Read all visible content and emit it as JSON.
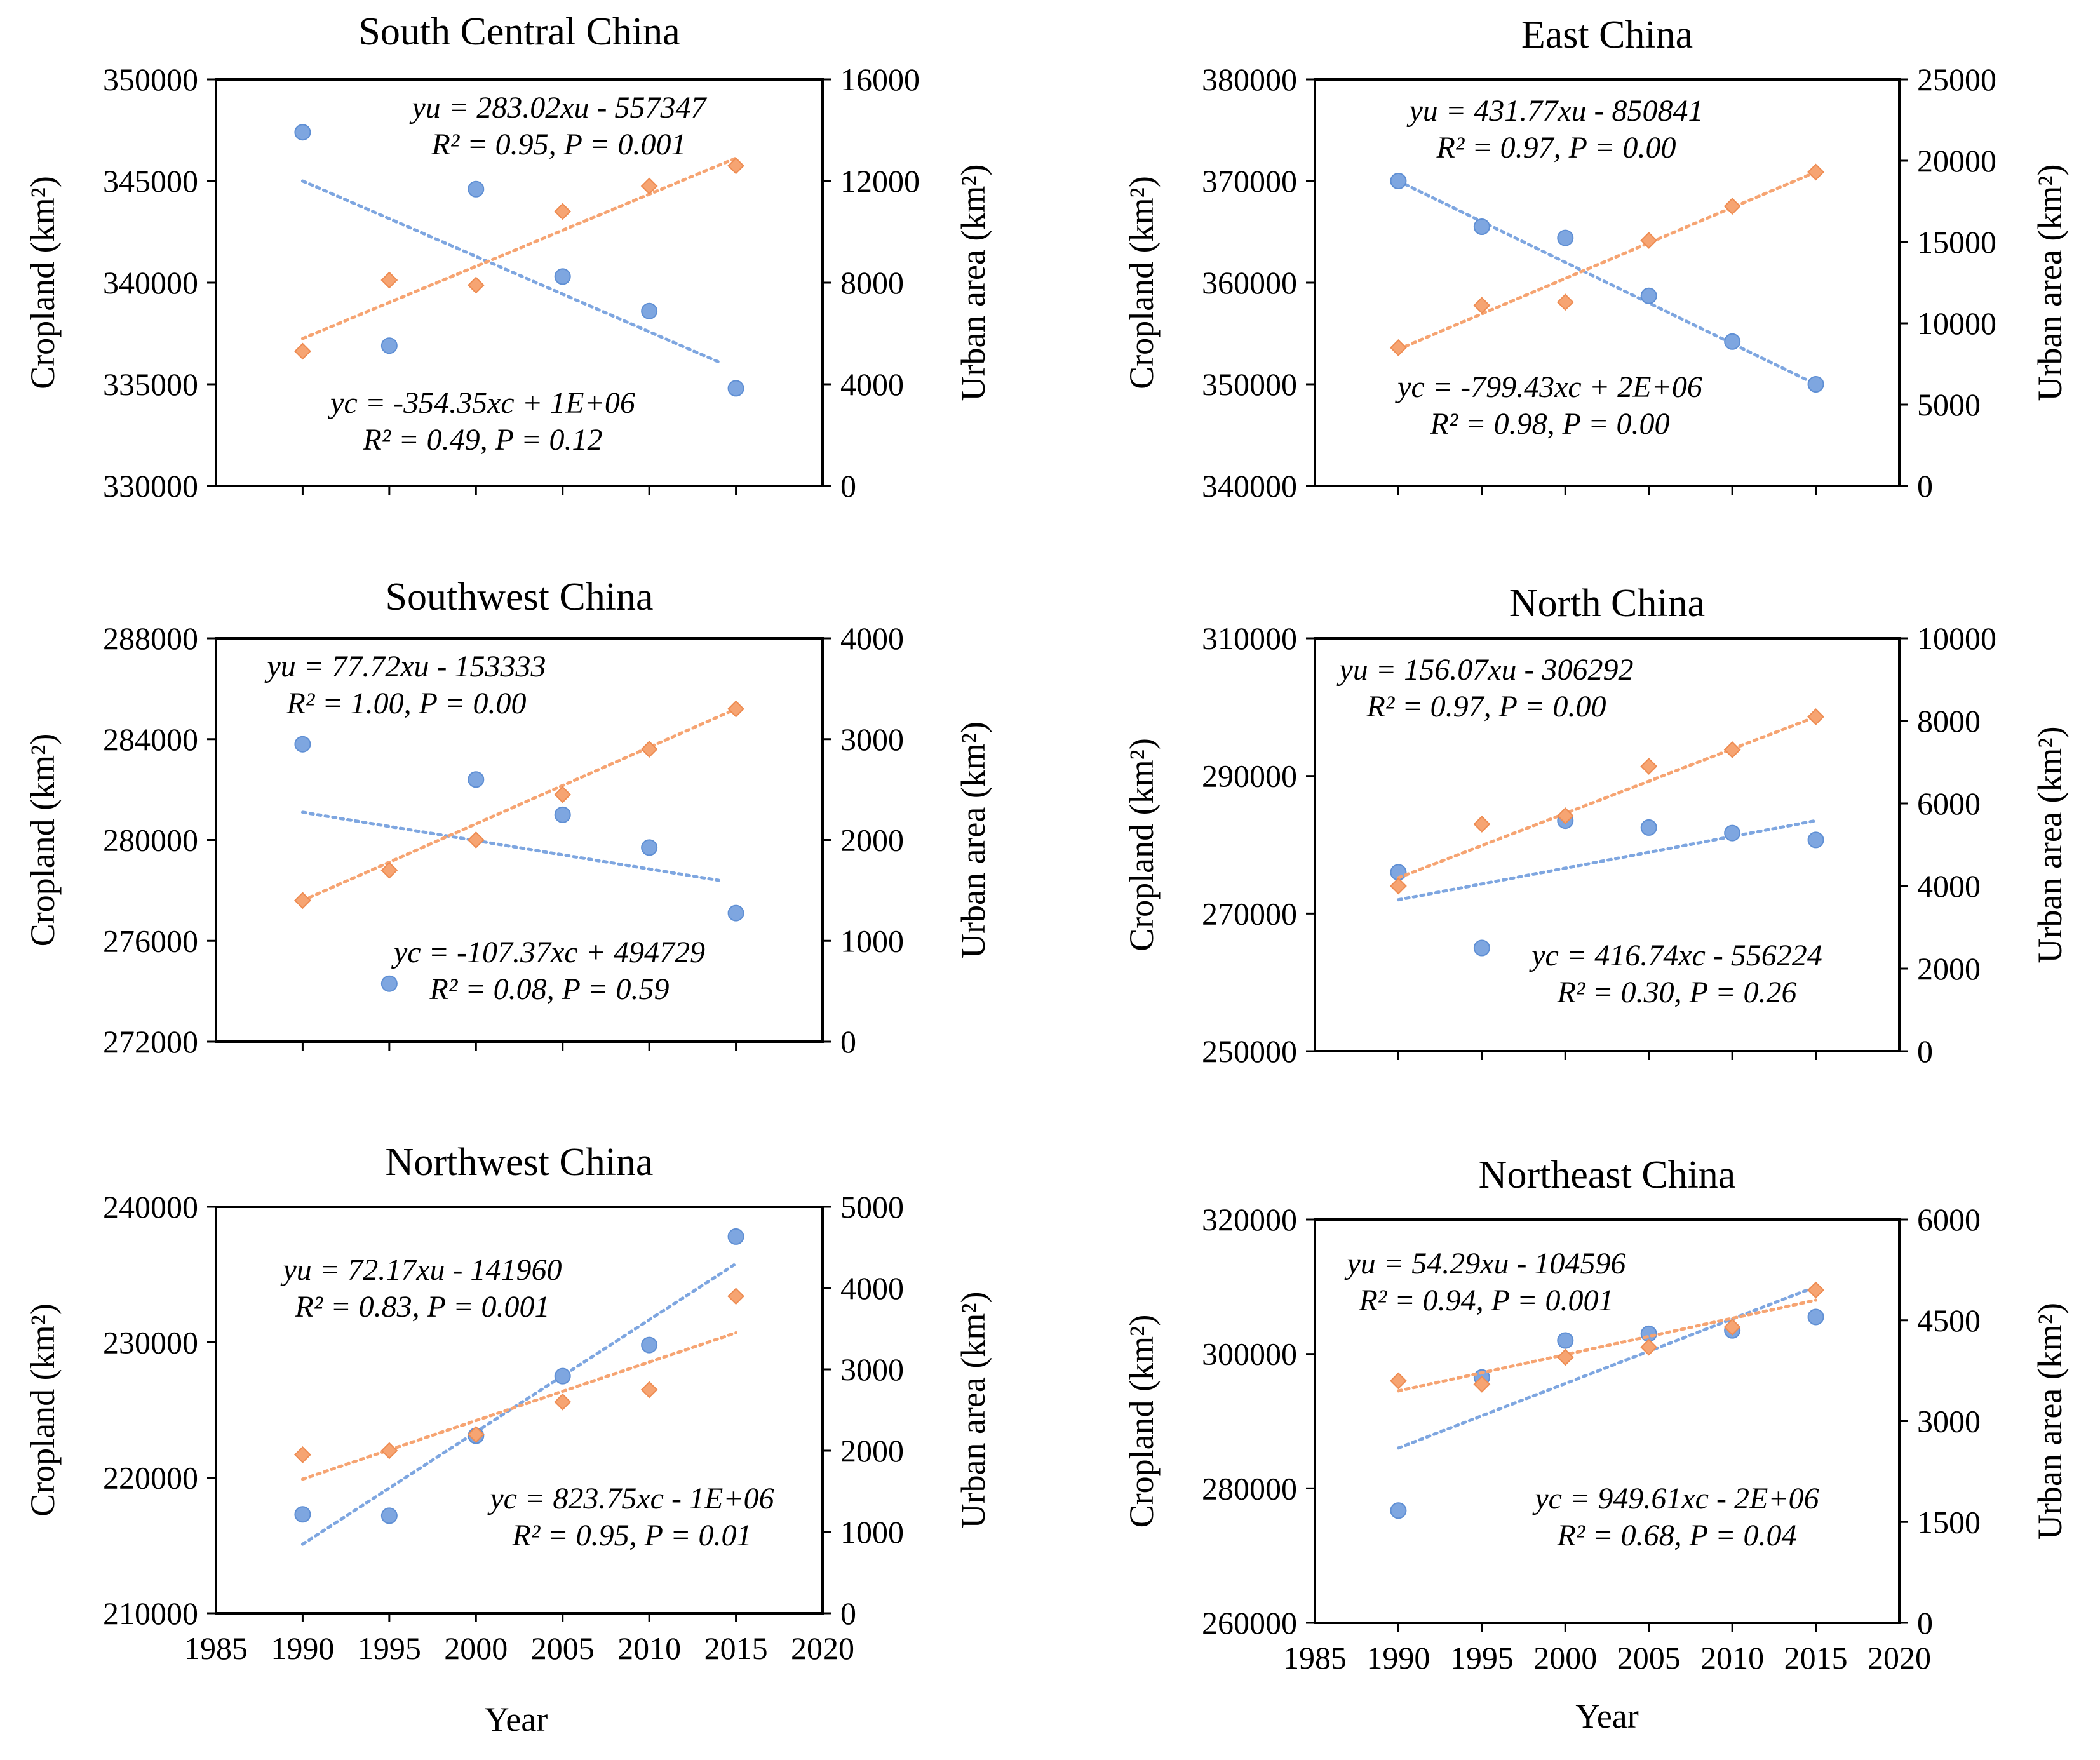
{
  "colors": {
    "cropland": "#7ea6e0",
    "urban": "#f6a472",
    "frame": "#000000"
  },
  "chart_data": [
    {
      "type": "scatter",
      "title": "South Central China",
      "xlabel": "",
      "ylabel": "Cropland (km²)",
      "y2label": "Urban area (km²)",
      "xlim": [
        1985,
        2020
      ],
      "xticks": [],
      "ylim": [
        330000,
        350000
      ],
      "yticks": [
        "330000",
        "335000",
        "340000",
        "345000",
        "350000"
      ],
      "y2lim": [
        0,
        16000
      ],
      "y2ticks": [
        "0",
        "4000",
        "8000",
        "12000",
        "16000"
      ],
      "series": [
        {
          "name": "Cropland",
          "axis": "left",
          "x": [
            1990,
            1995,
            2000,
            2005,
            2010,
            2015
          ],
          "y": [
            347400,
            336900,
            344600,
            340300,
            338600,
            334800
          ],
          "trend": [
            1990,
            345000,
            2014,
            336100
          ]
        },
        {
          "name": "Urban area",
          "axis": "right",
          "x": [
            1990,
            1995,
            2000,
            2005,
            2010,
            2015
          ],
          "y": [
            5300,
            8100,
            7900,
            10800,
            11800,
            12600
          ],
          "trend": [
            1990,
            5800,
            2015,
            12900
          ]
        }
      ],
      "urban_eq": {
        "line1": "yu = 283.02xu - 557347",
        "line2": "R² = 0.95, P = 0.001"
      },
      "crop_eq": {
        "line1": "yc = -354.35xc + 1E+06",
        "line2": "R² = 0.49, P = 0.12"
      }
    },
    {
      "type": "scatter",
      "title": "East China",
      "xlabel": "",
      "ylabel": "Cropland (km²)",
      "y2label": "Urban area (km²)",
      "xlim": [
        1985,
        2020
      ],
      "xticks": [],
      "ylim": [
        340000,
        380000
      ],
      "yticks": [
        "340000",
        "350000",
        "360000",
        "370000",
        "380000"
      ],
      "y2lim": [
        0,
        25000
      ],
      "y2ticks": [
        "0",
        "5000",
        "10000",
        "15000",
        "20000",
        "25000"
      ],
      "series": [
        {
          "name": "Cropland",
          "axis": "left",
          "x": [
            1990,
            1995,
            2000,
            2005,
            2010,
            2015
          ],
          "y": [
            370000,
            365500,
            364400,
            358700,
            354200,
            350000
          ],
          "trend": [
            1990,
            370000,
            2015,
            350000
          ]
        },
        {
          "name": "Urban area",
          "axis": "right",
          "x": [
            1990,
            1995,
            2000,
            2005,
            2010,
            2015
          ],
          "y": [
            8500,
            11100,
            11300,
            15100,
            17200,
            19300
          ],
          "trend": [
            1990,
            8400,
            2015,
            19300
          ]
        }
      ],
      "urban_eq": {
        "line1": "yu = 431.77xu - 850841",
        "line2": "R² = 0.97, P = 0.00"
      },
      "crop_eq": {
        "line1": "yc = -799.43xc + 2E+06",
        "line2": "R² = 0.98, P = 0.00"
      }
    },
    {
      "type": "scatter",
      "title": "Southwest China",
      "xlabel": "",
      "ylabel": "Cropland (km²)",
      "y2label": "Urban area (km²)",
      "xlim": [
        1985,
        2020
      ],
      "xticks": [],
      "ylim": [
        272000,
        288000
      ],
      "yticks": [
        "272000",
        "276000",
        "280000",
        "284000",
        "288000"
      ],
      "y2lim": [
        0,
        4000
      ],
      "y2ticks": [
        "0",
        "1000",
        "2000",
        "3000",
        "4000"
      ],
      "series": [
        {
          "name": "Cropland",
          "axis": "left",
          "x": [
            1990,
            1995,
            2000,
            2005,
            2010,
            2015
          ],
          "y": [
            283800,
            274300,
            282400,
            281000,
            279700,
            277100
          ],
          "trend": [
            1990,
            281100,
            2014,
            278400
          ]
        },
        {
          "name": "Urban area",
          "axis": "right",
          "x": [
            1990,
            1995,
            2000,
            2005,
            2010,
            2015
          ],
          "y": [
            1400,
            1700,
            2000,
            2450,
            2900,
            3300
          ],
          "trend": [
            1990,
            1400,
            2015,
            3300
          ]
        }
      ],
      "urban_eq": {
        "line1": "yu = 77.72xu - 153333",
        "line2": "R² = 1.00, P = 0.00"
      },
      "crop_eq": {
        "line1": "yc = -107.37xc + 494729",
        "line2": "R² = 0.08, P = 0.59"
      }
    },
    {
      "type": "scatter",
      "title": "North China",
      "xlabel": "",
      "ylabel": "Cropland (km²)",
      "y2label": "Urban area (km²)",
      "xlim": [
        1985,
        2020
      ],
      "xticks": [],
      "ylim": [
        250000,
        310000
      ],
      "yticks": [
        "250000",
        "270000",
        "290000",
        "310000"
      ],
      "y2lim": [
        0,
        10000
      ],
      "y2ticks": [
        "0",
        "2000",
        "4000",
        "6000",
        "8000",
        "10000"
      ],
      "series": [
        {
          "name": "Cropland",
          "axis": "left",
          "x": [
            1990,
            1995,
            2000,
            2005,
            2010,
            2015
          ],
          "y": [
            276000,
            265000,
            283500,
            282500,
            281700,
            280700
          ],
          "trend": [
            1990,
            272000,
            2015,
            283500
          ]
        },
        {
          "name": "Urban area",
          "axis": "right",
          "x": [
            1990,
            1995,
            2000,
            2005,
            2010,
            2015
          ],
          "y": [
            4000,
            5500,
            5700,
            6900,
            7300,
            8100
          ],
          "trend": [
            1990,
            4200,
            2015,
            8100
          ]
        }
      ],
      "urban_eq": {
        "line1": "yu = 156.07xu - 306292",
        "line2": "R² = 0.97, P = 0.00"
      },
      "crop_eq": {
        "line1": "yc = 416.74xc - 556224",
        "line2": "R² = 0.30, P = 0.26"
      }
    },
    {
      "type": "scatter",
      "title": "Northwest China",
      "xlabel": "",
      "ylabel": "Cropland (km²)",
      "y2label": "Urban area (km²)",
      "xlim": [
        1985,
        2020
      ],
      "xticks": [
        "1985",
        "1990",
        "1995",
        "2000",
        "2005",
        "2010",
        "2015",
        "2020"
      ],
      "ylim": [
        210000,
        240000
      ],
      "yticks": [
        "210000",
        "220000",
        "230000",
        "240000"
      ],
      "y2lim": [
        0,
        5000
      ],
      "y2ticks": [
        "0",
        "1000",
        "2000",
        "3000",
        "4000",
        "5000"
      ],
      "series": [
        {
          "name": "Cropland",
          "axis": "left",
          "x": [
            1990,
            1995,
            2000,
            2005,
            2010,
            2015
          ],
          "y": [
            217300,
            217200,
            223100,
            227500,
            229800,
            237800
          ],
          "trend": [
            1990,
            215100,
            2015,
            235800
          ]
        },
        {
          "name": "Urban area",
          "axis": "right",
          "x": [
            1990,
            1995,
            2000,
            2005,
            2010,
            2015
          ],
          "y": [
            1950,
            2000,
            2200,
            2600,
            2750,
            3900
          ],
          "trend": [
            1990,
            1650,
            2015,
            3450
          ]
        }
      ],
      "urban_eq": {
        "line1": "yu = 72.17xu - 141960",
        "line2": "R² = 0.83, P = 0.001"
      },
      "crop_eq": {
        "line1": "yc = 823.75xc - 1E+06",
        "line2": "R² = 0.95, P = 0.01"
      }
    },
    {
      "type": "scatter",
      "title": "Northeast China",
      "xlabel": "Year",
      "ylabel": "Cropland (km²)",
      "y2label": "Urban area (km²)",
      "xlim": [
        1985,
        2020
      ],
      "xticks": [
        "1985",
        "1990",
        "1995",
        "2000",
        "2005",
        "2010",
        "2015",
        "2020"
      ],
      "ylim": [
        260000,
        320000
      ],
      "yticks": [
        "260000",
        "280000",
        "300000",
        "320000"
      ],
      "y2lim": [
        0,
        6000
      ],
      "y2ticks": [
        "0",
        "1500",
        "3000",
        "4500",
        "6000"
      ],
      "series": [
        {
          "name": "Cropland",
          "axis": "left",
          "x": [
            1990,
            1995,
            2000,
            2005,
            2010,
            2015
          ],
          "y": [
            276700,
            296500,
            302000,
            303000,
            303500,
            305500
          ],
          "trend": [
            1990,
            286000,
            2015,
            310000
          ]
        },
        {
          "name": "Urban area",
          "axis": "right",
          "x": [
            1990,
            1995,
            2000,
            2005,
            2010,
            2015
          ],
          "y": [
            3600,
            3550,
            3950,
            4100,
            4400,
            4950
          ],
          "trend": [
            1990,
            3450,
            2015,
            4800
          ]
        }
      ],
      "urban_eq": {
        "line1": "yu = 54.29xu - 104596",
        "line2": "R² = 0.94, P = 0.001"
      },
      "crop_eq": {
        "line1": "yc = 949.61xc - 2E+06",
        "line2": "R² = 0.68, P = 0.04"
      }
    }
  ],
  "year_label_left": "Year"
}
